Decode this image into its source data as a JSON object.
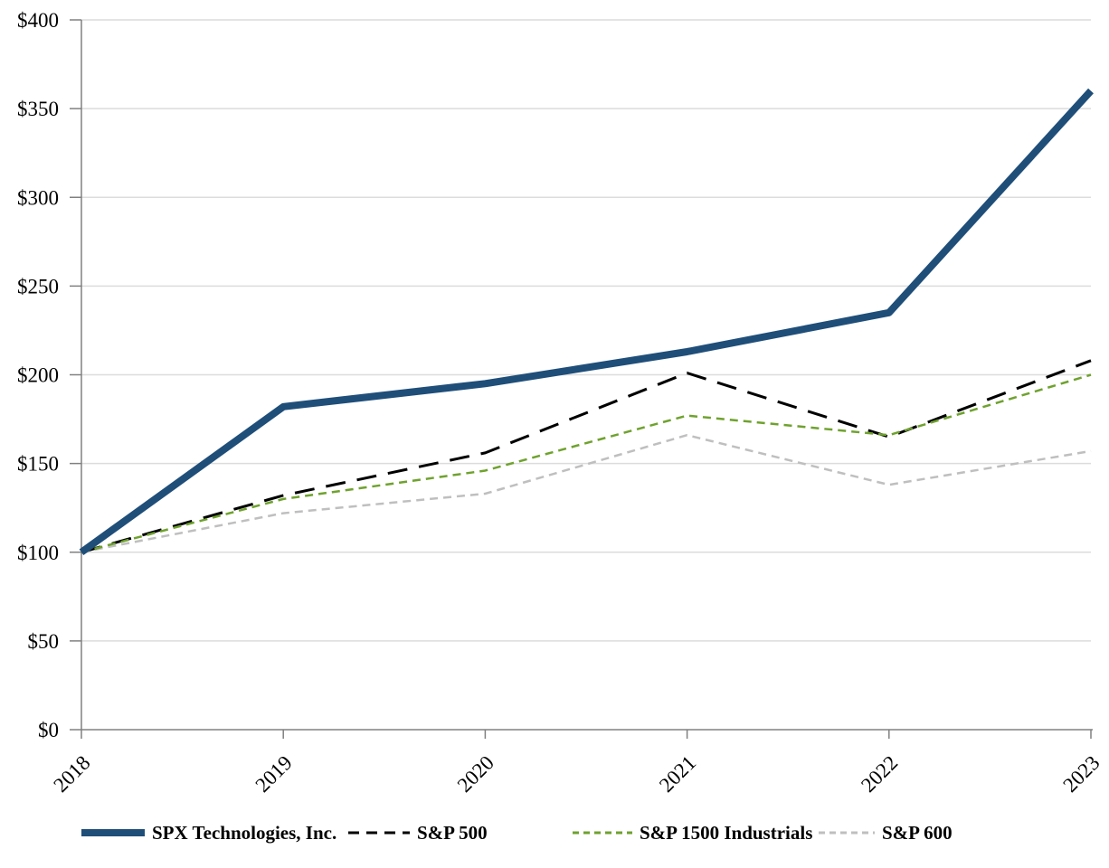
{
  "chart_data": {
    "type": "line",
    "x": [
      "2018",
      "2019",
      "2020",
      "2021",
      "2022",
      "2023"
    ],
    "series": [
      {
        "name": "SPX Technologies, Inc.",
        "values": [
          100,
          182,
          195,
          213,
          235,
          360
        ],
        "color": "#1F4E79",
        "line_style": "solid",
        "line_width": 8,
        "swatch_width": 70
      },
      {
        "name": "S&P 500",
        "values": [
          100,
          132,
          156,
          201,
          165,
          208
        ],
        "color": "#000000",
        "line_style": "dashed-long",
        "line_width": 3,
        "swatch_width": 68
      },
      {
        "name": "S&P 1500 Industrials",
        "values": [
          100,
          130,
          146,
          177,
          166,
          200
        ],
        "color": "#6FA22E",
        "line_style": "dashed-short",
        "line_width": 2.5,
        "swatch_width": 66
      },
      {
        "name": "S&P 600",
        "values": [
          100,
          122,
          133,
          166,
          138,
          157
        ],
        "color": "#BFBFBF",
        "line_style": "dashed-short",
        "line_width": 2.5,
        "swatch_width": 62
      }
    ],
    "title": "",
    "xlabel": "",
    "ylabel": "",
    "ylim": [
      0,
      400
    ],
    "ytick_step": 50,
    "ytick_labels": [
      "$0",
      "$50",
      "$100",
      "$150",
      "$200",
      "$250",
      "$300",
      "$350",
      "$400"
    ],
    "grid": true,
    "legend_position": "bottom"
  },
  "colors": {
    "series_spx": "#1F4E79",
    "series_sp500": "#000000",
    "series_sp1500_industrials": "#6FA22E",
    "series_sp600": "#BFBFBF",
    "gridline": "#DCDCDC",
    "axis": "#808080",
    "text": "#000000",
    "background": "#FFFFFF"
  }
}
